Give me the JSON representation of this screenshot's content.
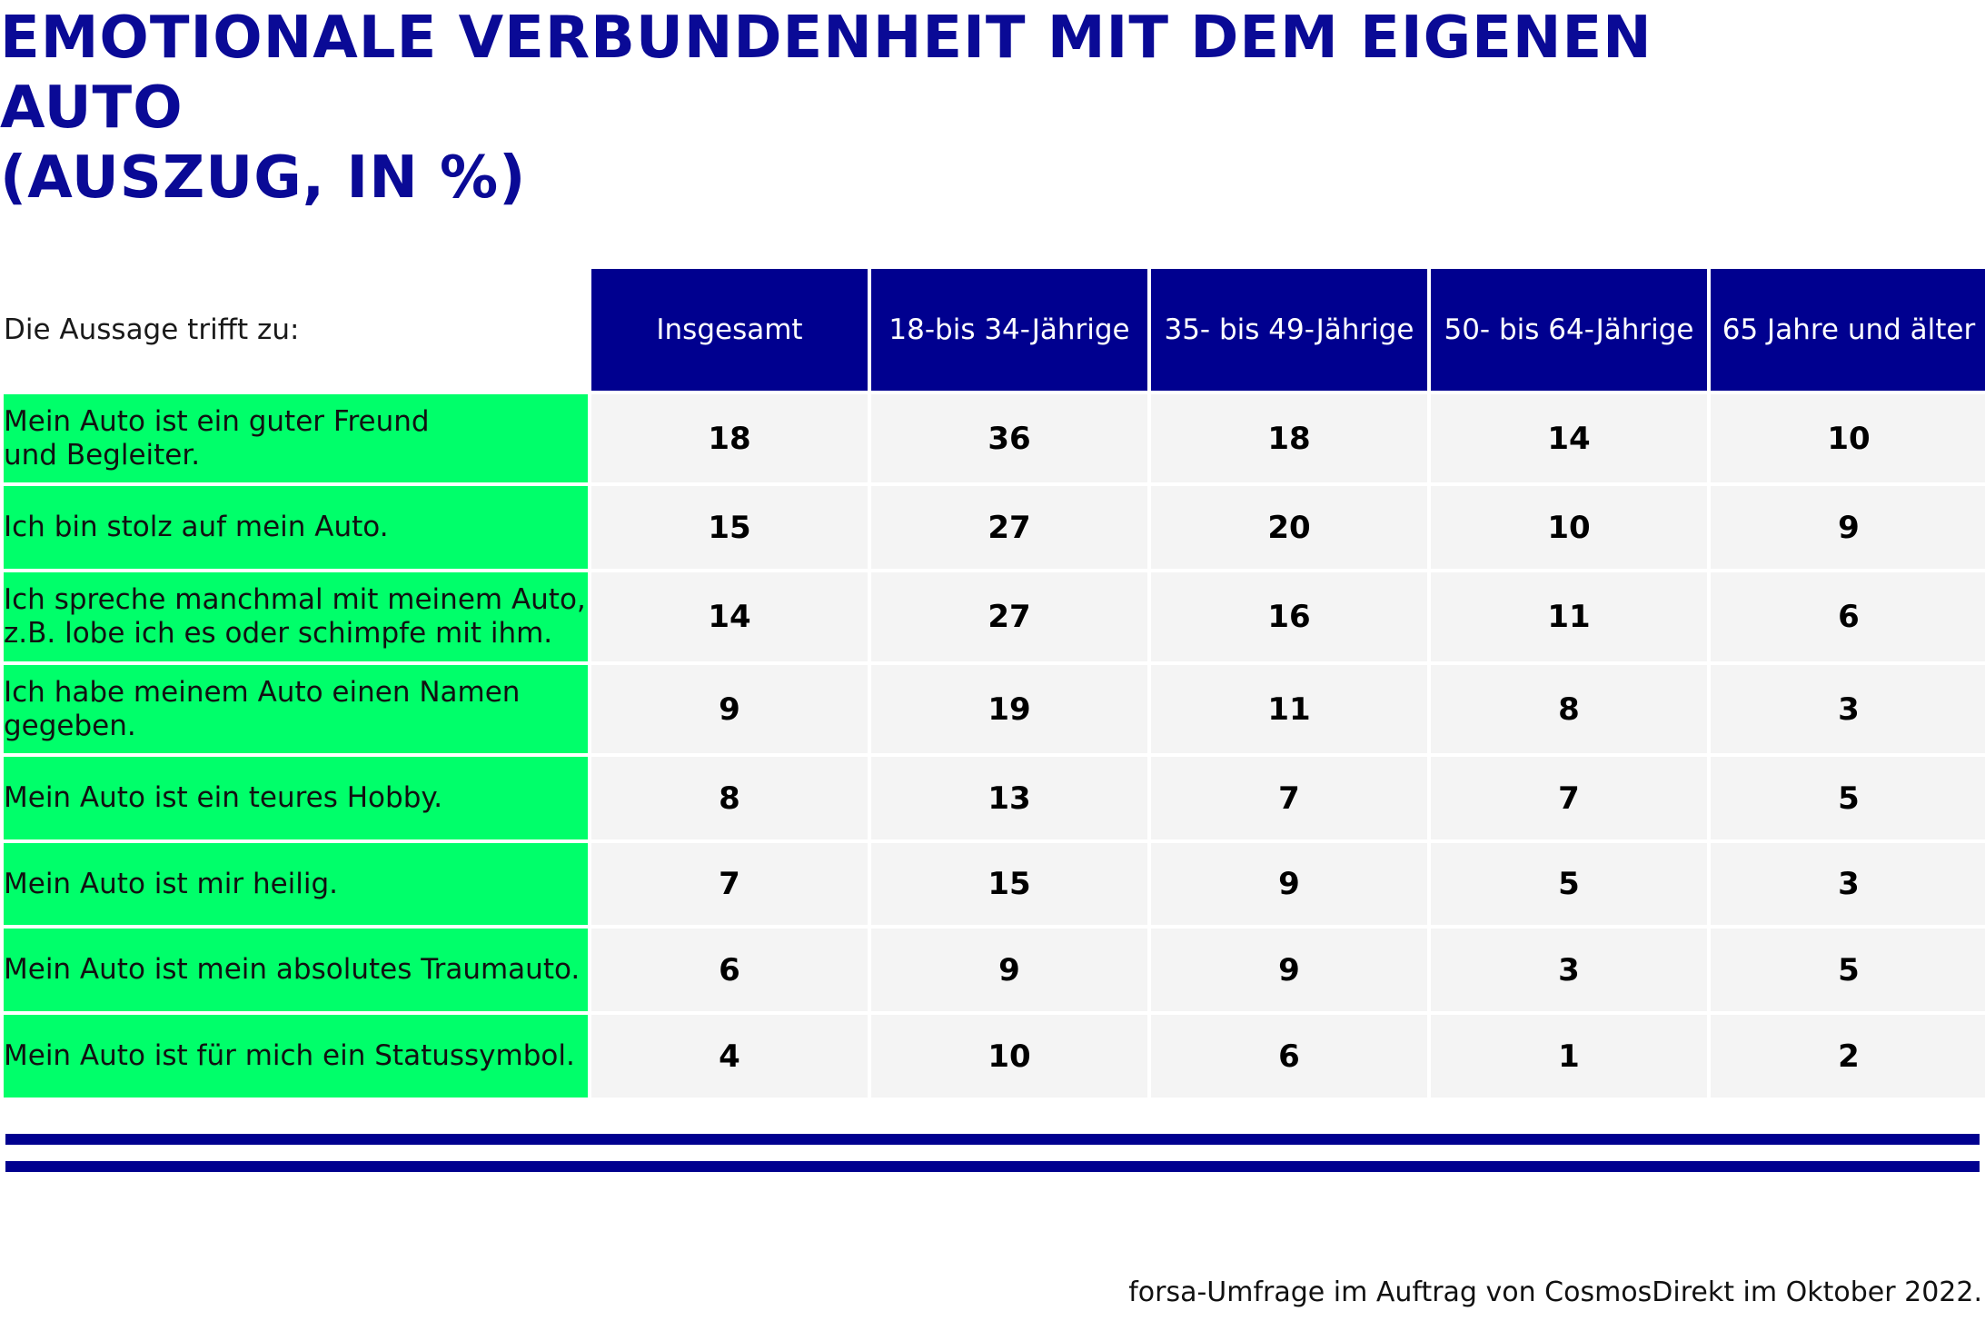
{
  "title": "EMOTIONALE VERBUNDENHEIT MIT DEM EIGENEN AUTO\n(AUSZUG, IN %)",
  "source": "forsa-Umfrage im Auftrag von CosmosDirekt im Oktober 2022.",
  "colors": {
    "header_bg": "#00008f",
    "title": "#0a0a96",
    "label_bg": "#00ff6a",
    "cell_bg": "#f4f4f4"
  },
  "chart_data": {
    "type": "table",
    "row_header": "Die Aussage trifft zu:",
    "columns": [
      "Insgesamt",
      "18-bis 34-Jährige",
      "35- bis 49-Jährige",
      "50- bis 64-Jährige",
      "65 Jahre und älter"
    ],
    "rows": [
      {
        "label": "Mein Auto ist ein guter Freund\nund Begleiter.",
        "values": [
          18,
          36,
          18,
          14,
          10
        ]
      },
      {
        "label": "Ich bin stolz auf mein Auto.",
        "values": [
          15,
          27,
          20,
          10,
          9
        ]
      },
      {
        "label": "Ich spreche manchmal mit meinem Auto,\nz.B. lobe ich es oder schimpfe mit ihm.",
        "values": [
          14,
          27,
          16,
          11,
          6
        ]
      },
      {
        "label": "Ich habe meinem Auto einen Namen\ngegeben.",
        "values": [
          9,
          19,
          11,
          8,
          3
        ]
      },
      {
        "label": "Mein Auto ist ein teures Hobby.",
        "values": [
          8,
          13,
          7,
          7,
          5
        ]
      },
      {
        "label": "Mein Auto ist mir heilig.",
        "values": [
          7,
          15,
          9,
          5,
          3
        ]
      },
      {
        "label": "Mein Auto ist mein absolutes Traumauto.",
        "values": [
          6,
          9,
          9,
          3,
          5
        ]
      },
      {
        "label": "Mein Auto ist für mich ein Statussymbol.",
        "values": [
          4,
          10,
          6,
          1,
          2
        ]
      }
    ]
  }
}
